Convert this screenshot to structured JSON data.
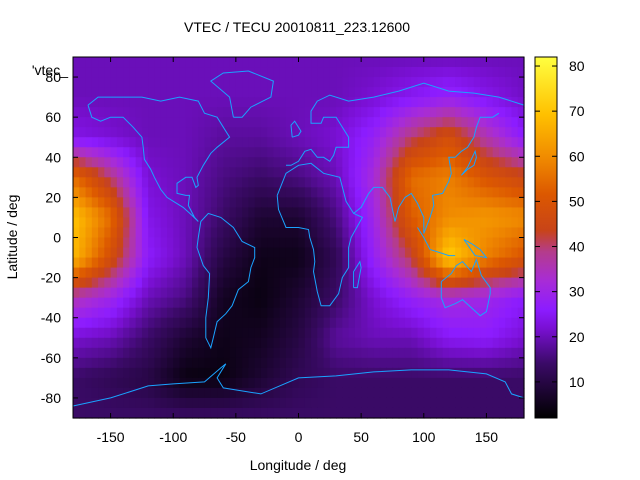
{
  "chart_data": {
    "type": "heatmap",
    "title": "VTEC / TECU 20010811_223.12600",
    "xlabel": "Longitude / deg",
    "ylabel": "Latitude / deg",
    "key_label": "'vtec_",
    "xlim": [
      -180,
      180
    ],
    "ylim": [
      -90,
      90
    ],
    "xticks": [
      -150,
      -100,
      -50,
      0,
      50,
      100,
      150
    ],
    "yticks": [
      -80,
      -60,
      -40,
      -20,
      0,
      20,
      40,
      60,
      80
    ],
    "colorbar": {
      "min": 2,
      "max": 82,
      "ticks": [
        10,
        20,
        30,
        40,
        50,
        60,
        70,
        80
      ]
    },
    "grid": false,
    "lon": [
      -180,
      -150,
      -120,
      -90,
      -60,
      -30,
      0,
      30,
      60,
      90,
      120,
      150,
      180
    ],
    "lat": [
      90,
      70,
      50,
      30,
      10,
      -10,
      -30,
      -50,
      -70,
      -90
    ],
    "values": [
      [
        20,
        20,
        20,
        20,
        20,
        20,
        20,
        20,
        20,
        20,
        20,
        20,
        20
      ],
      [
        20,
        20,
        20,
        20,
        20,
        20,
        20,
        20,
        22,
        25,
        28,
        24,
        21
      ],
      [
        24,
        22,
        20,
        20,
        18,
        18,
        20,
        22,
        28,
        40,
        48,
        36,
        26
      ],
      [
        55,
        40,
        22,
        20,
        16,
        14,
        16,
        20,
        32,
        55,
        58,
        50,
        45
      ],
      [
        70,
        55,
        24,
        20,
        14,
        8,
        8,
        16,
        30,
        52,
        60,
        62,
        60
      ],
      [
        68,
        48,
        26,
        20,
        10,
        5,
        5,
        12,
        28,
        42,
        72,
        58,
        50
      ],
      [
        36,
        30,
        20,
        16,
        6,
        4,
        8,
        14,
        22,
        28,
        32,
        30,
        26
      ],
      [
        22,
        20,
        14,
        8,
        5,
        6,
        10,
        18,
        20,
        20,
        25,
        26,
        22
      ],
      [
        14,
        12,
        10,
        4,
        4,
        8,
        12,
        14,
        14,
        14,
        14,
        14,
        14
      ],
      [
        14,
        14,
        14,
        14,
        14,
        14,
        14,
        14,
        14,
        14,
        14,
        14,
        14
      ]
    ]
  },
  "colors": {
    "coastline": "#1aa3ff",
    "background": "#ffffff",
    "axis": "#000000"
  }
}
